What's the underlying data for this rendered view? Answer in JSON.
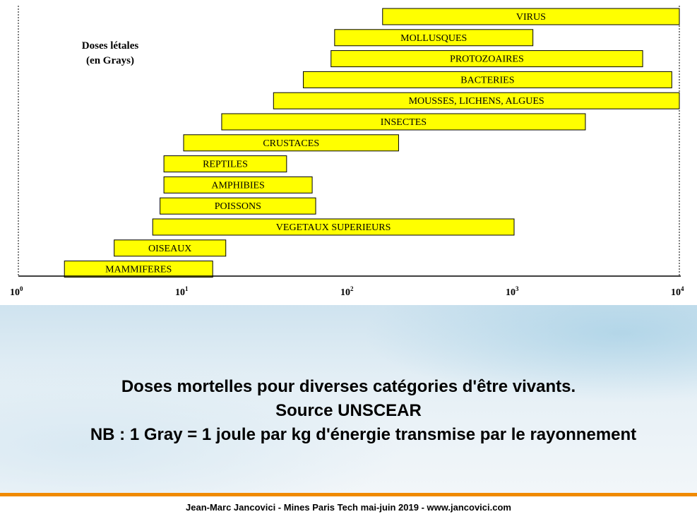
{
  "chart_data": {
    "type": "bar",
    "orientation": "horizontal-range",
    "x_scale": "log",
    "xlim": [
      1,
      10000
    ],
    "x_ticks": [
      {
        "value": 1,
        "base": "10",
        "exp": "0"
      },
      {
        "value": 10,
        "base": "10",
        "exp": "1"
      },
      {
        "value": 100,
        "base": "10",
        "exp": "2"
      },
      {
        "value": 1000,
        "base": "10",
        "exp": "3"
      },
      {
        "value": 10000,
        "base": "10",
        "exp": "4"
      }
    ],
    "legend_note": [
      "Doses létales",
      "(en Grays)"
    ],
    "bars": [
      {
        "label": "VIRUS",
        "min": 160,
        "max": 10000
      },
      {
        "label": "MOLLUSQUES",
        "min": 82,
        "max": 1300
      },
      {
        "label": "PROTOZOAIRES",
        "min": 78,
        "max": 6000
      },
      {
        "label": "BACTERIES",
        "min": 53,
        "max": 9000
      },
      {
        "label": "MOUSSES, LICHENS, ALGUES",
        "min": 35,
        "max": 10000
      },
      {
        "label": "INSECTES",
        "min": 17,
        "max": 2700
      },
      {
        "label": "CRUSTACES",
        "min": 10,
        "max": 200
      },
      {
        "label": "REPTILES",
        "min": 7.6,
        "max": 42
      },
      {
        "label": "AMPHIBIES",
        "min": 7.6,
        "max": 60
      },
      {
        "label": "POISSONS",
        "min": 7.2,
        "max": 63
      },
      {
        "label": "VEGETAUX SUPERIEURS",
        "min": 6.5,
        "max": 1000
      },
      {
        "label": "OISEAUX",
        "min": 3.8,
        "max": 18
      },
      {
        "label": "MAMMIFERES",
        "min": 1.9,
        "max": 15
      }
    ],
    "colors": {
      "bar_fill": "#ffff00",
      "bar_stroke": "#000000"
    }
  },
  "caption": {
    "line1": "Doses mortelles pour diverses catégories d'être vivants.",
    "line2": "Source UNSCEAR",
    "line3": "NB : 1 Gray = 1 joule par kg d'énergie transmise par le rayonnement"
  },
  "footer": "Jean-Marc Jancovici - Mines Paris Tech mai-juin 2019 - www.jancovici.com",
  "colors": {
    "orange_rule": "#f08a00"
  }
}
